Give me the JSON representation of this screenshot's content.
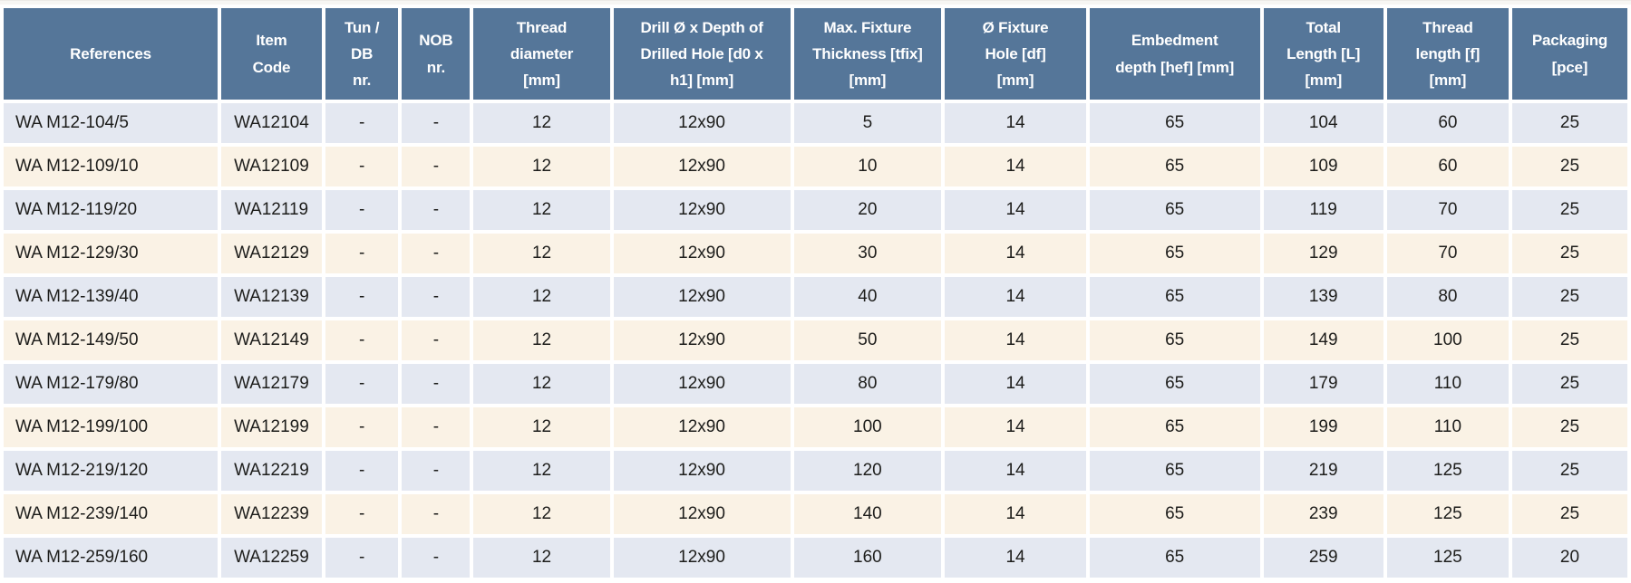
{
  "colors": {
    "header_bg": "#557699",
    "header_text": "#ffffff",
    "row_blue": "#e4e8f1",
    "row_cream": "#faf2e5",
    "cell_text": "#1d1d1b",
    "gutter": "#ffffff"
  },
  "table": {
    "columns": [
      {
        "id": "references",
        "label": "References"
      },
      {
        "id": "item-code",
        "label": "Item\nCode"
      },
      {
        "id": "tun-db-nr",
        "label": "Tun /\nDB\nnr."
      },
      {
        "id": "nob-nr",
        "label": "NOB\nnr."
      },
      {
        "id": "thread-diameter",
        "label": "Thread\ndiameter\n[mm]"
      },
      {
        "id": "drill-depth",
        "label": "Drill Ø x Depth of\nDrilled Hole [d0 x\nh1] [mm]"
      },
      {
        "id": "max-fixture-thickness",
        "label": "Max. Fixture\nThickness [tfix]\n[mm]"
      },
      {
        "id": "fixture-hole",
        "label": "Ø Fixture\nHole [df]\n[mm]"
      },
      {
        "id": "embedment-depth",
        "label": "Embedment\ndepth [hef] [mm]"
      },
      {
        "id": "total-length",
        "label": "Total\nLength [L]\n[mm]"
      },
      {
        "id": "thread-length",
        "label": "Thread\nlength [f]\n[mm]"
      },
      {
        "id": "packaging",
        "label": "Packaging\n[pce]"
      }
    ],
    "rows": [
      {
        "cells": [
          "WA M12-104/5",
          "WA12104",
          "-",
          "-",
          "12",
          "12x90",
          "5",
          "14",
          "65",
          "104",
          "60",
          "25"
        ]
      },
      {
        "cells": [
          "WA M12-109/10",
          "WA12109",
          "-",
          "-",
          "12",
          "12x90",
          "10",
          "14",
          "65",
          "109",
          "60",
          "25"
        ]
      },
      {
        "cells": [
          "WA M12-119/20",
          "WA12119",
          "-",
          "-",
          "12",
          "12x90",
          "20",
          "14",
          "65",
          "119",
          "70",
          "25"
        ]
      },
      {
        "cells": [
          "WA M12-129/30",
          "WA12129",
          "-",
          "-",
          "12",
          "12x90",
          "30",
          "14",
          "65",
          "129",
          "70",
          "25"
        ]
      },
      {
        "cells": [
          "WA M12-139/40",
          "WA12139",
          "-",
          "-",
          "12",
          "12x90",
          "40",
          "14",
          "65",
          "139",
          "80",
          "25"
        ]
      },
      {
        "cells": [
          "WA M12-149/50",
          "WA12149",
          "-",
          "-",
          "12",
          "12x90",
          "50",
          "14",
          "65",
          "149",
          "100",
          "25"
        ]
      },
      {
        "cells": [
          "WA M12-179/80",
          "WA12179",
          "-",
          "-",
          "12",
          "12x90",
          "80",
          "14",
          "65",
          "179",
          "110",
          "25"
        ]
      },
      {
        "cells": [
          "WA M12-199/100",
          "WA12199",
          "-",
          "-",
          "12",
          "12x90",
          "100",
          "14",
          "65",
          "199",
          "110",
          "25"
        ]
      },
      {
        "cells": [
          "WA M12-219/120",
          "WA12219",
          "-",
          "-",
          "12",
          "12x90",
          "120",
          "14",
          "65",
          "219",
          "125",
          "25"
        ]
      },
      {
        "cells": [
          "WA M12-239/140",
          "WA12239",
          "-",
          "-",
          "12",
          "12x90",
          "140",
          "14",
          "65",
          "239",
          "125",
          "25"
        ]
      },
      {
        "cells": [
          "WA M12-259/160",
          "WA12259",
          "-",
          "-",
          "12",
          "12x90",
          "160",
          "14",
          "65",
          "259",
          "125",
          "20"
        ]
      }
    ]
  }
}
